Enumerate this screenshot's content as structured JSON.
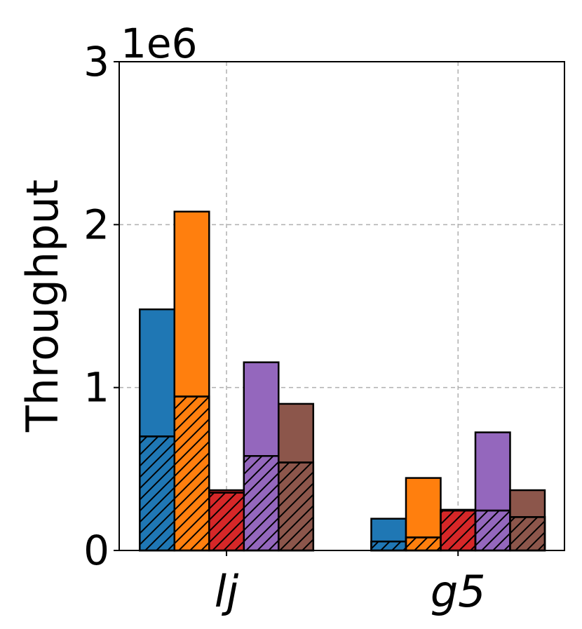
{
  "chart_data": {
    "type": "bar",
    "ylabel": "Throughput",
    "y_offset_label": "1e6",
    "ylim": [
      0,
      3000000
    ],
    "yticks": [
      {
        "value": 0,
        "label": "0"
      },
      {
        "value": 1000000,
        "label": "1"
      },
      {
        "value": 2000000,
        "label": "2"
      },
      {
        "value": 3000000,
        "label": "3"
      }
    ],
    "grid": true,
    "categories": [
      "lj",
      "g5"
    ],
    "series": [
      {
        "color": "#1f77b4",
        "total": [
          1480000,
          195000
        ],
        "hatched": [
          700000,
          55000
        ]
      },
      {
        "color": "#ff7f0e",
        "total": [
          2080000,
          445000
        ],
        "hatched": [
          945000,
          80000
        ]
      },
      {
        "color": "#d62728",
        "total": [
          370000,
          250000
        ],
        "hatched": [
          355000,
          245000
        ]
      },
      {
        "color": "#9467bd",
        "total": [
          1155000,
          725000
        ],
        "hatched": [
          580000,
          245000
        ]
      },
      {
        "color": "#8c564b",
        "total": [
          900000,
          370000
        ],
        "hatched": [
          540000,
          205000
        ]
      }
    ]
  }
}
